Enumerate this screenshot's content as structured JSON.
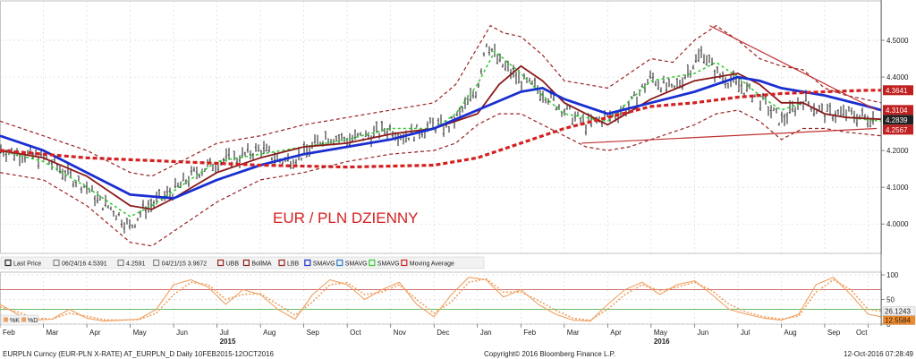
{
  "chart_data": [
    {
      "type": "line",
      "title": "",
      "annotation": "EUR / PLN DZIENNY",
      "ylim": [
        3.92,
        4.6
      ],
      "y_ticks": [
        "4.5000",
        "4.4000",
        "4.2000",
        "4.1000",
        "4.0000"
      ],
      "x_ticks": [
        "Feb",
        "Mar",
        "Apr",
        "May",
        "Jun",
        "Jul",
        "Aug",
        "Sep",
        "Oct",
        "Nov",
        "Dec",
        "Jan",
        "Feb",
        "Mar",
        "Apr",
        "May",
        "Jun",
        "Jul",
        "Aug",
        "Sep",
        "Oct"
      ],
      "x_years": [
        {
          "label": "2015",
          "month_index": 5
        },
        {
          "label": "2016",
          "month_index": 15
        }
      ],
      "x_range_months": [
        0,
        20.3
      ],
      "legend": [
        {
          "label": "Last Price",
          "color": "#222222"
        },
        {
          "label": "06/24/16 4.5391",
          "color": "#888888"
        },
        {
          "label": "4.2591",
          "color": "#888888"
        },
        {
          "label": "04/21/15 3.9672",
          "color": "#888888"
        },
        {
          "label": "UBB",
          "color": "#9a2222"
        },
        {
          "label": "BollMA",
          "color": "#8b1a1a"
        },
        {
          "label": "LBB",
          "color": "#9a2222"
        },
        {
          "label": "SMAVG",
          "color": "#1a2fd0"
        },
        {
          "label": "SMAVG",
          "color": "#2a7ad0"
        },
        {
          "label": "SMAVG",
          "color": "#33cc33"
        },
        {
          "label": "Moving Average",
          "color": "#cc2222"
        }
      ],
      "value_tags": [
        {
          "label": "4.3641",
          "value": 4.3641,
          "color": "#c02020"
        },
        {
          "label": "4.3104",
          "value": 4.3104,
          "color": "#c02020"
        },
        {
          "label": "4.2839",
          "value": 4.2839,
          "color": "#222222"
        },
        {
          "label": "4.2567",
          "value": 4.2567,
          "color": "#c02020"
        }
      ],
      "series": [
        {
          "key": "price",
          "color": "#111111",
          "x": [
            0,
            0.5,
            1,
            1.5,
            2,
            2.3,
            2.6,
            3,
            3.3,
            3.6,
            4,
            4.5,
            5,
            5.5,
            6,
            6.5,
            7,
            7.5,
            8,
            8.5,
            9,
            9.3,
            9.6,
            10,
            10.3,
            10.6,
            11,
            11.2,
            11.5,
            12,
            12.5,
            13,
            13.5,
            14,
            14.5,
            15,
            15.5,
            16,
            16.2,
            16.5,
            17,
            17.5,
            18,
            18.5,
            19,
            19.5,
            20,
            20.3
          ],
          "values": [
            4.205,
            4.19,
            4.18,
            4.14,
            4.1,
            4.06,
            4.04,
            3.99,
            4.04,
            4.06,
            4.09,
            4.14,
            4.17,
            4.18,
            4.205,
            4.17,
            4.19,
            4.24,
            4.23,
            4.24,
            4.26,
            4.24,
            4.25,
            4.27,
            4.26,
            4.3,
            4.37,
            4.5,
            4.44,
            4.39,
            4.36,
            4.31,
            4.27,
            4.29,
            4.32,
            4.4,
            4.36,
            4.44,
            4.47,
            4.41,
            4.38,
            4.34,
            4.28,
            4.34,
            4.3,
            4.3,
            4.29,
            4.284
          ]
        },
        {
          "key": "sma_green",
          "color": "#33cc33",
          "x": [
            0,
            1,
            2,
            3,
            3.5,
            4,
            5,
            6,
            7,
            8,
            9,
            10,
            10.5,
            11,
            11.4,
            12,
            12.5,
            13,
            14,
            15,
            16,
            16.5,
            17,
            17.5,
            18,
            18.5,
            19,
            19.5,
            20.3
          ],
          "values": [
            4.2,
            4.17,
            4.1,
            4.02,
            4.05,
            4.09,
            4.17,
            4.19,
            4.21,
            4.23,
            4.26,
            4.26,
            4.3,
            4.38,
            4.47,
            4.41,
            4.35,
            4.3,
            4.28,
            4.39,
            4.41,
            4.44,
            4.4,
            4.35,
            4.31,
            4.33,
            4.3,
            4.29,
            4.28
          ]
        },
        {
          "key": "bollma",
          "color": "#8b1a1a",
          "x": [
            0,
            1,
            2,
            3,
            3.5,
            4,
            5,
            6,
            7,
            8,
            9,
            10,
            11,
            11.5,
            12,
            12.5,
            13,
            14,
            15,
            16,
            17,
            17.5,
            18,
            18.5,
            19,
            19.5,
            20.3
          ],
          "values": [
            4.2,
            4.18,
            4.13,
            4.05,
            4.04,
            4.07,
            4.14,
            4.18,
            4.21,
            4.22,
            4.245,
            4.26,
            4.3,
            4.38,
            4.43,
            4.39,
            4.33,
            4.27,
            4.34,
            4.39,
            4.41,
            4.38,
            4.33,
            4.33,
            4.3,
            4.29,
            4.285
          ]
        },
        {
          "key": "sma_blue",
          "color": "#1a2fd0",
          "x": [
            0,
            1,
            2,
            3,
            4,
            5,
            6,
            7,
            8,
            9,
            10,
            11,
            12,
            12.5,
            13,
            14,
            15,
            16,
            17,
            17.5,
            18,
            19,
            20,
            20.3
          ],
          "values": [
            4.24,
            4.2,
            4.14,
            4.08,
            4.07,
            4.12,
            4.16,
            4.19,
            4.21,
            4.23,
            4.26,
            4.31,
            4.36,
            4.37,
            4.34,
            4.3,
            4.33,
            4.36,
            4.4,
            4.39,
            4.37,
            4.35,
            4.32,
            4.31
          ]
        },
        {
          "key": "ma_red_long",
          "color": "#d42020",
          "dashed": true,
          "x": [
            0,
            2,
            4,
            6,
            8,
            10,
            11,
            12,
            13,
            14,
            15,
            16,
            17,
            18,
            19,
            20,
            20.3
          ],
          "values": [
            4.2,
            4.18,
            4.17,
            4.16,
            4.155,
            4.16,
            4.18,
            4.22,
            4.26,
            4.29,
            4.32,
            4.33,
            4.345,
            4.355,
            4.36,
            4.364,
            4.364
          ]
        },
        {
          "key": "ubb",
          "color": "#9a2222",
          "dashed": true,
          "x": [
            0,
            0.5,
            1,
            2,
            3,
            3.5,
            4,
            5,
            6,
            7,
            8,
            9,
            10,
            10.5,
            11,
            11.3,
            11.6,
            12,
            12.5,
            13,
            14,
            15,
            15.5,
            16,
            16.5,
            17,
            17.5,
            18,
            18.5,
            19,
            19.5,
            20.3
          ],
          "values": [
            4.28,
            4.26,
            4.24,
            4.2,
            4.14,
            4.13,
            4.16,
            4.22,
            4.24,
            4.27,
            4.29,
            4.31,
            4.33,
            4.38,
            4.48,
            4.54,
            4.52,
            4.51,
            4.46,
            4.39,
            4.37,
            4.45,
            4.44,
            4.5,
            4.54,
            4.5,
            4.45,
            4.43,
            4.42,
            4.37,
            4.35,
            4.33
          ]
        },
        {
          "key": "lbb",
          "color": "#9a2222",
          "dashed": true,
          "x": [
            0,
            1,
            2,
            3,
            3.5,
            4,
            5,
            6,
            7,
            8,
            9,
            10,
            10.5,
            11,
            11.5,
            12,
            13,
            13.5,
            14,
            14.5,
            15,
            16,
            16.5,
            17,
            17.5,
            18,
            18.5,
            19,
            19.5,
            20.3
          ],
          "values": [
            4.14,
            4.12,
            4.05,
            3.95,
            3.94,
            3.98,
            4.06,
            4.12,
            4.14,
            4.17,
            4.19,
            4.2,
            4.22,
            4.27,
            4.3,
            4.3,
            4.24,
            4.21,
            4.2,
            4.21,
            4.23,
            4.27,
            4.3,
            4.31,
            4.28,
            4.23,
            4.26,
            4.26,
            4.25,
            4.24
          ]
        }
      ],
      "trendlines": [
        {
          "color": "#c03030",
          "x": [
            16.35,
            20.2
          ],
          "values": [
            4.54,
            4.31
          ]
        },
        {
          "color": "#c03030",
          "x": [
            13.4,
            20.2
          ],
          "values": [
            4.22,
            4.26
          ]
        }
      ]
    },
    {
      "type": "line",
      "title": "",
      "ylim": [
        0,
        100
      ],
      "y_ticks": [
        "100",
        "50",
        "0"
      ],
      "levels": [
        70,
        30
      ],
      "level_colors": [
        "#c04040",
        "#33aa33"
      ],
      "legend": [
        {
          "label": "%K",
          "color": "#f0a060"
        },
        {
          "label": "%D",
          "color": "#f0a060"
        }
      ],
      "value_tags": [
        {
          "label": "26.1243",
          "value": 26.1243,
          "color": "#f0f0f0",
          "text_color": "#222222"
        },
        {
          "label": "12.5584",
          "value": 12.5584,
          "color": "#f08a2a",
          "text_color": "#222222"
        }
      ],
      "series": [
        {
          "key": "k",
          "name": "%K",
          "color": "#f0a060",
          "x": [
            0,
            0.4,
            0.8,
            1.2,
            1.6,
            2,
            2.4,
            2.8,
            3.2,
            3.6,
            4,
            4.4,
            4.8,
            5.2,
            5.6,
            6,
            6.4,
            6.8,
            7.2,
            7.6,
            8,
            8.4,
            8.8,
            9.2,
            9.6,
            10,
            10.4,
            10.8,
            11.2,
            11.6,
            12,
            12.4,
            12.8,
            13.2,
            13.6,
            14,
            14.4,
            14.8,
            15.2,
            15.6,
            16,
            16.4,
            16.8,
            17.2,
            17.6,
            18,
            18.4,
            18.8,
            19.2,
            19.6,
            20,
            20.3
          ],
          "values": [
            40,
            20,
            8,
            10,
            30,
            12,
            6,
            8,
            10,
            30,
            80,
            90,
            75,
            40,
            70,
            60,
            30,
            10,
            60,
            90,
            80,
            50,
            70,
            85,
            40,
            15,
            60,
            95,
            90,
            55,
            70,
            40,
            20,
            8,
            6,
            40,
            70,
            85,
            60,
            80,
            88,
            60,
            30,
            20,
            12,
            8,
            20,
            80,
            95,
            60,
            20,
            15
          ]
        },
        {
          "key": "d",
          "name": "%D",
          "color": "#f0a060",
          "x": [
            0,
            0.4,
            0.8,
            1.2,
            1.6,
            2,
            2.4,
            2.8,
            3.2,
            3.6,
            4,
            4.4,
            4.8,
            5.2,
            5.6,
            6,
            6.4,
            6.8,
            7.2,
            7.6,
            8,
            8.4,
            8.8,
            9.2,
            9.6,
            10,
            10.4,
            10.8,
            11.2,
            11.6,
            12,
            12.4,
            12.8,
            13.2,
            13.6,
            14,
            14.4,
            14.8,
            15.2,
            15.6,
            16,
            16.4,
            16.8,
            17.2,
            17.6,
            18,
            18.4,
            18.8,
            19.2,
            19.6,
            20,
            20.3
          ],
          "values": [
            35,
            25,
            12,
            10,
            22,
            16,
            9,
            8,
            9,
            22,
            60,
            85,
            80,
            50,
            60,
            62,
            40,
            18,
            45,
            80,
            84,
            60,
            65,
            80,
            50,
            22,
            45,
            85,
            92,
            65,
            65,
            48,
            28,
            12,
            8,
            30,
            60,
            80,
            68,
            75,
            85,
            68,
            40,
            24,
            15,
            10,
            16,
            65,
            90,
            70,
            30,
            26
          ]
        }
      ]
    }
  ],
  "footer": {
    "left": "EURPLN Curncy (EUR-PLN X-RATE) AT_EURPLN_D  Daily 10FEB2015-12OCT2016",
    "center": "Copyright© 2016 Bloomberg Finance L.P.",
    "right": "12-Oct-2016 07:28:49"
  }
}
